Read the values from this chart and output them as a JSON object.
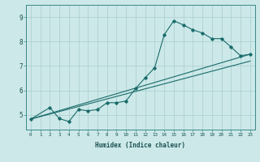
{
  "title": "",
  "xlabel": "Humidex (Indice chaleur)",
  "xlim": [
    -0.5,
    23.5
  ],
  "ylim": [
    4.4,
    9.5
  ],
  "xticks": [
    0,
    1,
    2,
    3,
    4,
    5,
    6,
    7,
    8,
    9,
    10,
    11,
    12,
    13,
    14,
    15,
    16,
    17,
    18,
    19,
    20,
    21,
    22,
    23
  ],
  "yticks": [
    5,
    6,
    7,
    8,
    9
  ],
  "background_color": "#cce8e8",
  "line_color": "#1a6b6b",
  "grid_color": "#aacece",
  "jagged_line": {
    "x": [
      0,
      2,
      3,
      4,
      5,
      6,
      7,
      8,
      9,
      10,
      11,
      12,
      13,
      14,
      15,
      16,
      17,
      18,
      19,
      20,
      21,
      22,
      23
    ],
    "y": [
      4.83,
      5.3,
      4.85,
      4.73,
      5.22,
      5.17,
      5.22,
      5.5,
      5.5,
      5.57,
      6.08,
      6.52,
      6.93,
      8.28,
      8.85,
      8.68,
      8.48,
      8.35,
      8.12,
      8.12,
      7.78,
      7.42,
      7.48
    ]
  },
  "trend_line1": {
    "x": [
      0,
      23
    ],
    "y": [
      4.83,
      7.48
    ]
  },
  "trend_line2": {
    "x": [
      0,
      23
    ],
    "y": [
      4.83,
      7.2
    ]
  }
}
